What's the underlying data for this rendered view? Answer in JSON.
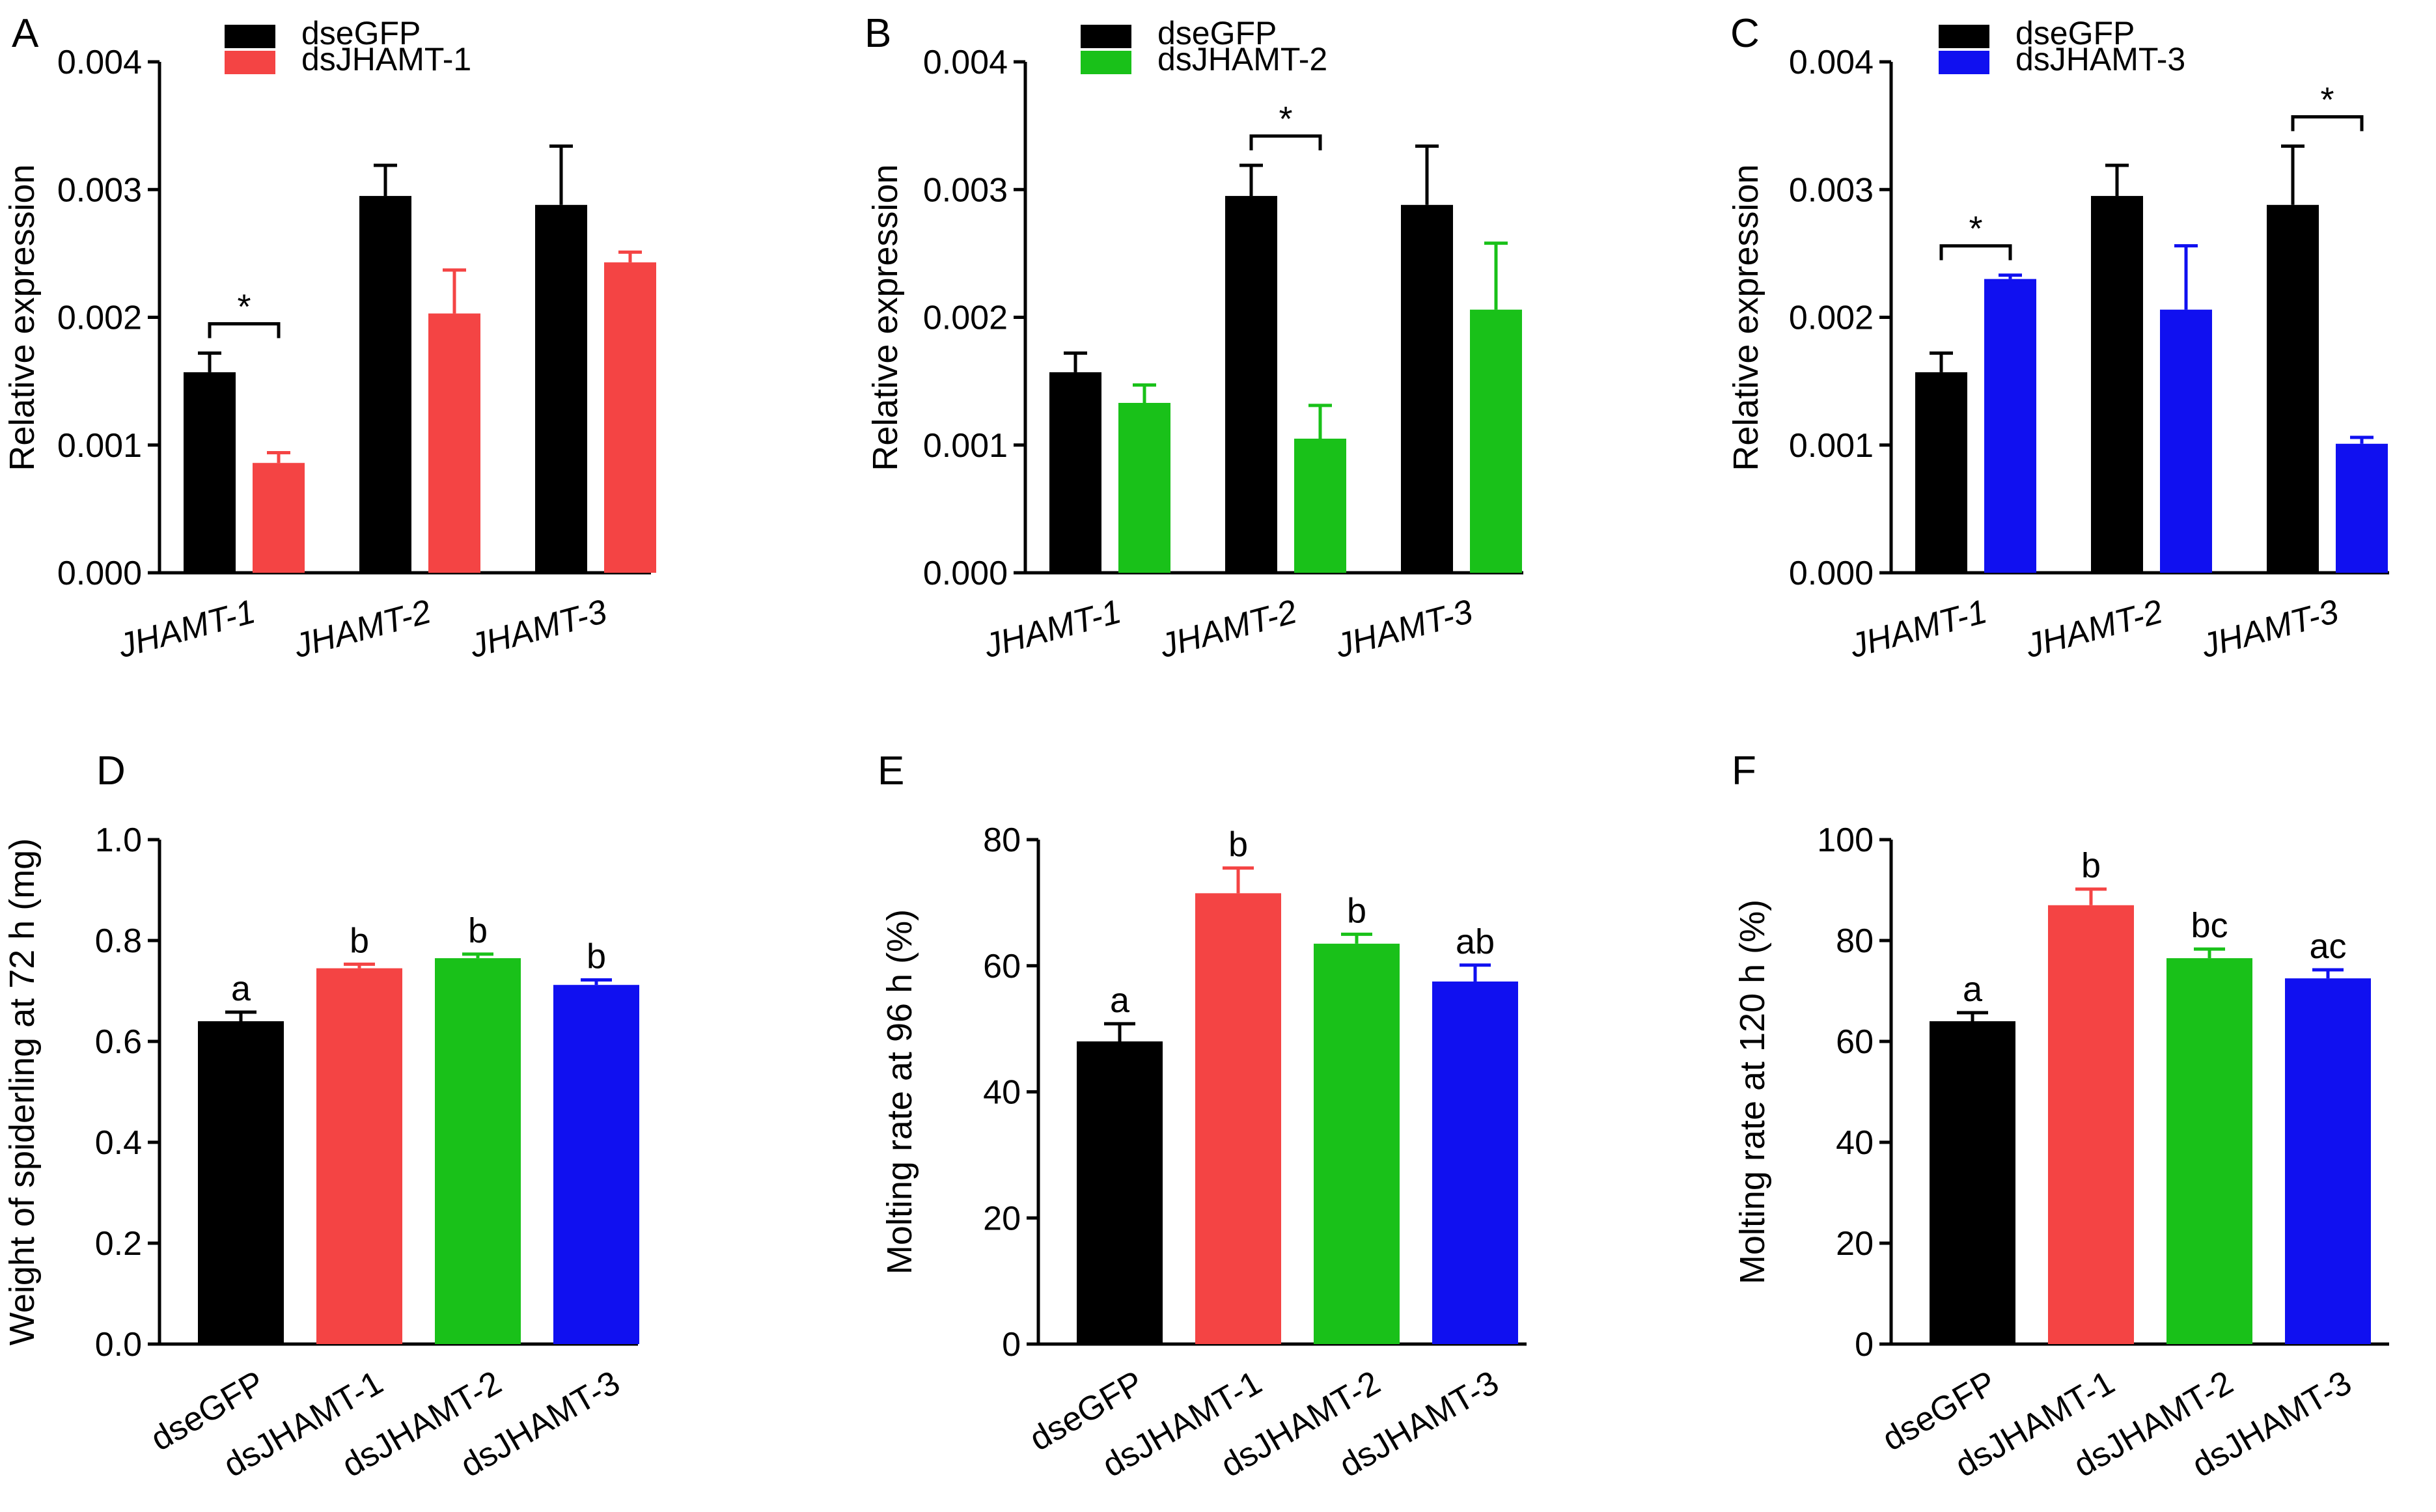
{
  "colors": {
    "dseGFP": "#000000",
    "dsJHAMT-1": "#f44444",
    "dsJHAMT-2": "#19c119",
    "dsJHAMT-3": "#1010f0"
  },
  "chart_data": [
    {
      "panel": "A",
      "type": "bar",
      "ylabel": "Relative expression",
      "ylim": [
        0,
        0.004
      ],
      "yticks": [
        "0.000",
        "0.001",
        "0.002",
        "0.003",
        "0.004"
      ],
      "categories": [
        "JHAMT-1",
        "JHAMT-2",
        "JHAMT-3"
      ],
      "legend": "top-left",
      "series": [
        {
          "name": "dseGFP",
          "color": "#000000",
          "values": [
            0.00157,
            0.00295,
            0.00288
          ],
          "errors": [
            0.00015,
            0.00024,
            0.00046
          ]
        },
        {
          "name": "dsJHAMT-1",
          "color": "#f44444",
          "values": [
            0.00086,
            0.00203,
            0.00243
          ],
          "errors": [
            8e-05,
            0.00034,
            8e-05
          ]
        }
      ],
      "annotations": [
        {
          "text": "*",
          "category": "JHAMT-1"
        }
      ]
    },
    {
      "panel": "B",
      "type": "bar",
      "ylabel": "Relative expression",
      "ylim": [
        0,
        0.004
      ],
      "yticks": [
        "0.000",
        "0.001",
        "0.002",
        "0.003",
        "0.004"
      ],
      "categories": [
        "JHAMT-1",
        "JHAMT-2",
        "JHAMT-3"
      ],
      "legend": "top-left",
      "series": [
        {
          "name": "dseGFP",
          "color": "#000000",
          "values": [
            0.00157,
            0.00295,
            0.00288
          ],
          "errors": [
            0.00015,
            0.00024,
            0.00046
          ]
        },
        {
          "name": "dsJHAMT-2",
          "color": "#19c119",
          "values": [
            0.00133,
            0.00105,
            0.00206
          ],
          "errors": [
            0.00014,
            0.00026,
            0.00052
          ]
        }
      ],
      "annotations": [
        {
          "text": "*",
          "category": "JHAMT-2"
        }
      ]
    },
    {
      "panel": "C",
      "type": "bar",
      "ylabel": "Relative expression",
      "ylim": [
        0,
        0.004
      ],
      "yticks": [
        "0.000",
        "0.001",
        "0.002",
        "0.003",
        "0.004"
      ],
      "categories": [
        "JHAMT-1",
        "JHAMT-2",
        "JHAMT-3"
      ],
      "legend": "top-left",
      "series": [
        {
          "name": "dseGFP",
          "color": "#000000",
          "values": [
            0.00157,
            0.00295,
            0.00288
          ],
          "errors": [
            0.00015,
            0.00024,
            0.00046
          ]
        },
        {
          "name": "dsJHAMT-3",
          "color": "#1010f0",
          "values": [
            0.0023,
            0.00206,
            0.00101
          ],
          "errors": [
            3e-05,
            0.0005,
            5e-05
          ]
        }
      ],
      "annotations": [
        {
          "text": "*",
          "category": "JHAMT-1"
        },
        {
          "text": "*",
          "category": "JHAMT-3"
        }
      ]
    },
    {
      "panel": "D",
      "type": "bar",
      "ylabel": "Weight of spiderling at 72 h (mg)",
      "ylim": [
        0,
        1.0
      ],
      "yticks": [
        "0.0",
        "0.2",
        "0.4",
        "0.6",
        "0.8",
        "1.0"
      ],
      "categories": [
        "dseGFP",
        "dsJHAMT-1",
        "dsJHAMT-2",
        "dsJHAMT-3"
      ],
      "colors": [
        "#000000",
        "#f44444",
        "#19c119",
        "#1010f0"
      ],
      "values": [
        0.64,
        0.745,
        0.765,
        0.712
      ],
      "errors": [
        0.018,
        0.008,
        0.008,
        0.01
      ],
      "letters": [
        "a",
        "b",
        "b",
        "b"
      ]
    },
    {
      "panel": "E",
      "type": "bar",
      "ylabel": "Molting rate at 96 h (%)",
      "ylim": [
        0,
        80
      ],
      "yticks": [
        "0",
        "20",
        "40",
        "60",
        "80"
      ],
      "categories": [
        "dseGFP",
        "dsJHAMT-1",
        "dsJHAMT-2",
        "dsJHAMT-3"
      ],
      "colors": [
        "#000000",
        "#f44444",
        "#19c119",
        "#1010f0"
      ],
      "values": [
        48,
        71.5,
        63.5,
        57.5
      ],
      "errors": [
        2.8,
        4.0,
        1.5,
        2.6
      ],
      "letters": [
        "a",
        "b",
        "b",
        "ab"
      ]
    },
    {
      "panel": "F",
      "type": "bar",
      "ylabel": "Molting rate at 120 h (%)",
      "ylim": [
        0,
        100
      ],
      "yticks": [
        "0",
        "20",
        "40",
        "60",
        "80",
        "100"
      ],
      "categories": [
        "dseGFP",
        "dsJHAMT-1",
        "dsJHAMT-2",
        "dsJHAMT-3"
      ],
      "colors": [
        "#000000",
        "#f44444",
        "#19c119",
        "#1010f0"
      ],
      "values": [
        64,
        87,
        76.5,
        72.5
      ],
      "errors": [
        1.7,
        3.2,
        1.8,
        1.7
      ],
      "letters": [
        "a",
        "b",
        "bc",
        "ac"
      ]
    }
  ]
}
